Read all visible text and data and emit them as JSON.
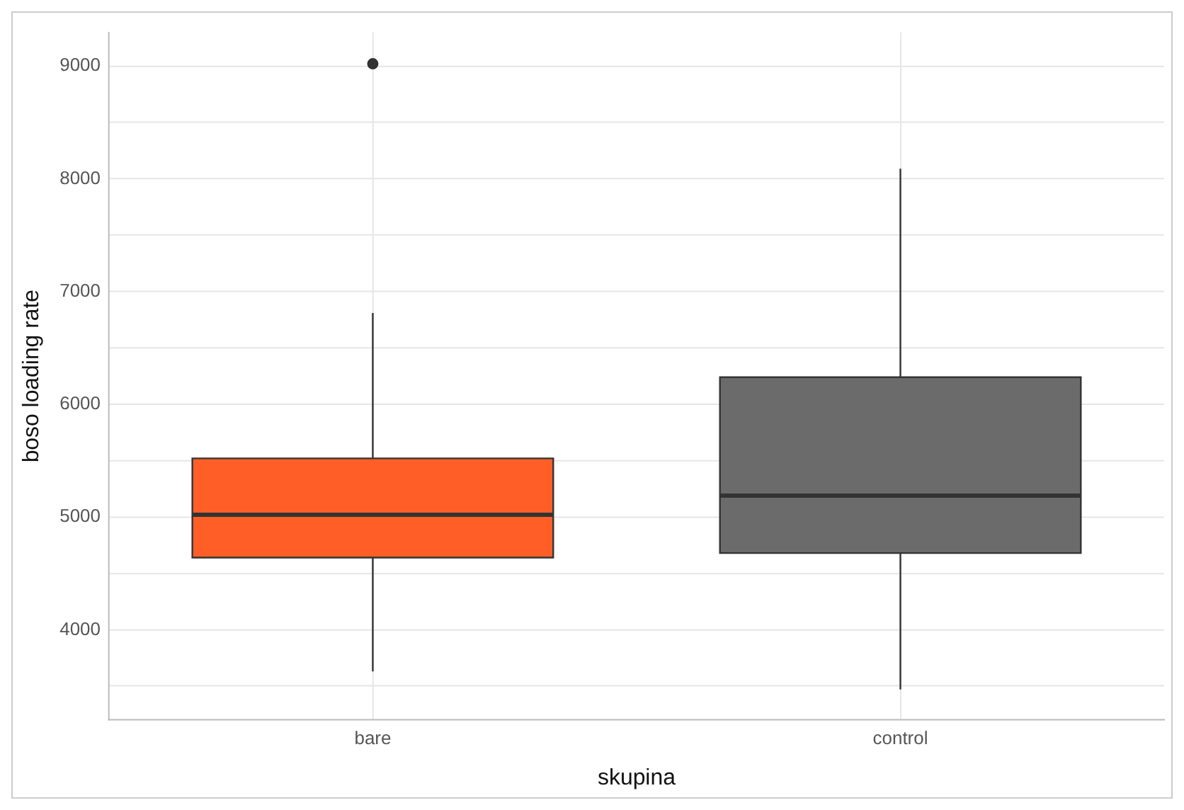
{
  "chart_data": {
    "type": "box",
    "xlabel": "skupina",
    "ylabel": "boso loading rate",
    "categories": [
      "bare",
      "control"
    ],
    "colors": [
      "#ff5f27",
      "#6b6b6b"
    ],
    "boxes": [
      {
        "low": 3630,
        "q1": 4640,
        "median": 5020,
        "q3": 5520,
        "high": 6810,
        "outliers": [
          9020
        ]
      },
      {
        "low": 3470,
        "q1": 4680,
        "median": 5190,
        "q3": 6240,
        "high": 8090
      }
    ],
    "ylim": [
      3200,
      9300
    ],
    "yticks": [
      {
        "value": 3500,
        "label": null
      },
      4000,
      {
        "value": 4500,
        "label": null
      },
      5000,
      {
        "value": 5500,
        "label": null
      },
      6000,
      {
        "value": 6500,
        "label": null
      },
      7000,
      {
        "value": 7500,
        "label": null
      },
      8000,
      {
        "value": 8500,
        "label": null
      },
      9000
    ],
    "grid": true
  }
}
